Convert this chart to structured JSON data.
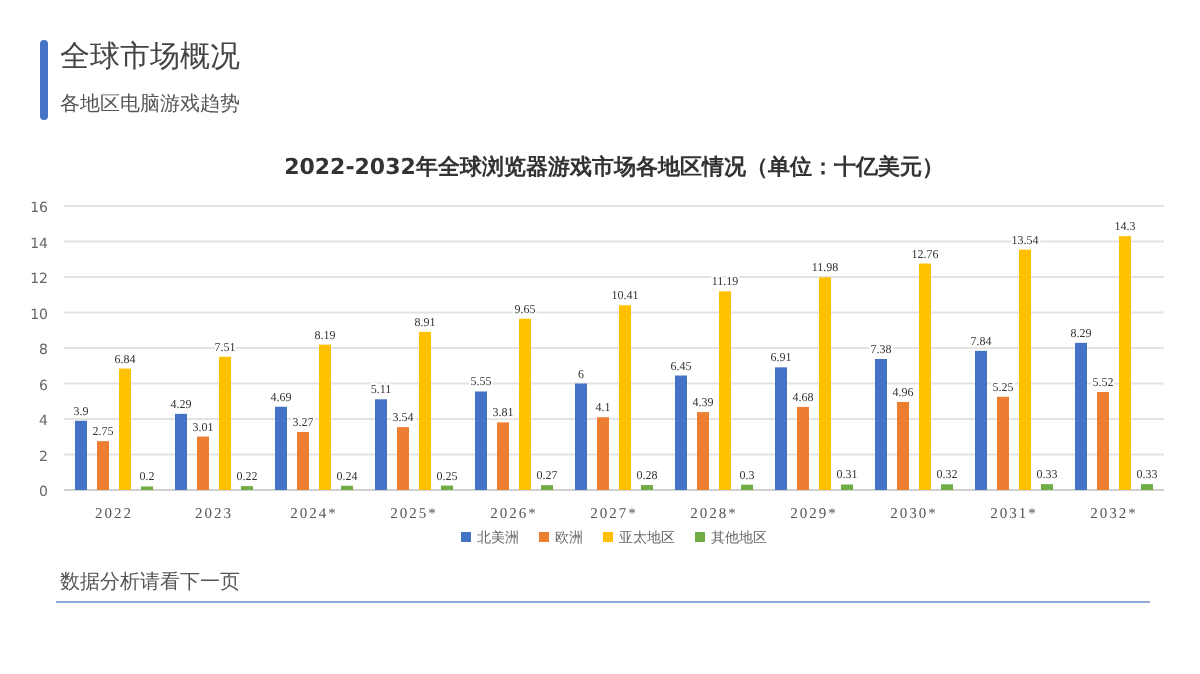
{
  "chart_data": {
    "type": "bar",
    "title": "2022-2032年全球浏览器游戏市场各地区情况（单位：十亿美元）",
    "annotations": [
      "全球市场概况",
      "各地区电脑游戏趋势",
      "数据分析请看下一页"
    ],
    "categories": [
      "2022",
      "2023",
      "2024*",
      "2025*",
      "2026*",
      "2027*",
      "2028*",
      "2029*",
      "2030*",
      "2031*",
      "2032*"
    ],
    "series": [
      {
        "name": "北美洲",
        "color": "#4472c4",
        "values": [
          3.9,
          4.29,
          4.69,
          5.11,
          5.55,
          6,
          6.45,
          6.91,
          7.38,
          7.84,
          8.29
        ]
      },
      {
        "name": "欧洲",
        "color": "#ed7d31",
        "values": [
          2.75,
          3.01,
          3.27,
          3.54,
          3.81,
          4.1,
          4.39,
          4.68,
          4.96,
          5.25,
          5.52
        ]
      },
      {
        "name": "亚太地区",
        "color": "#ffc000",
        "values": [
          6.84,
          7.51,
          8.19,
          8.91,
          9.65,
          10.41,
          11.19,
          11.98,
          12.76,
          13.54,
          14.3
        ]
      },
      {
        "name": "其他地区",
        "color": "#70ad47",
        "values": [
          0.2,
          0.22,
          0.24,
          0.25,
          0.27,
          0.28,
          0.3,
          0.31,
          0.32,
          0.33,
          0.33
        ]
      }
    ],
    "ylim": [
      0,
      16
    ],
    "yticks": [
      0,
      2,
      4,
      6,
      8,
      10,
      12,
      14,
      16
    ],
    "grid": "y",
    "legend": "bottom",
    "data_labels": true
  }
}
